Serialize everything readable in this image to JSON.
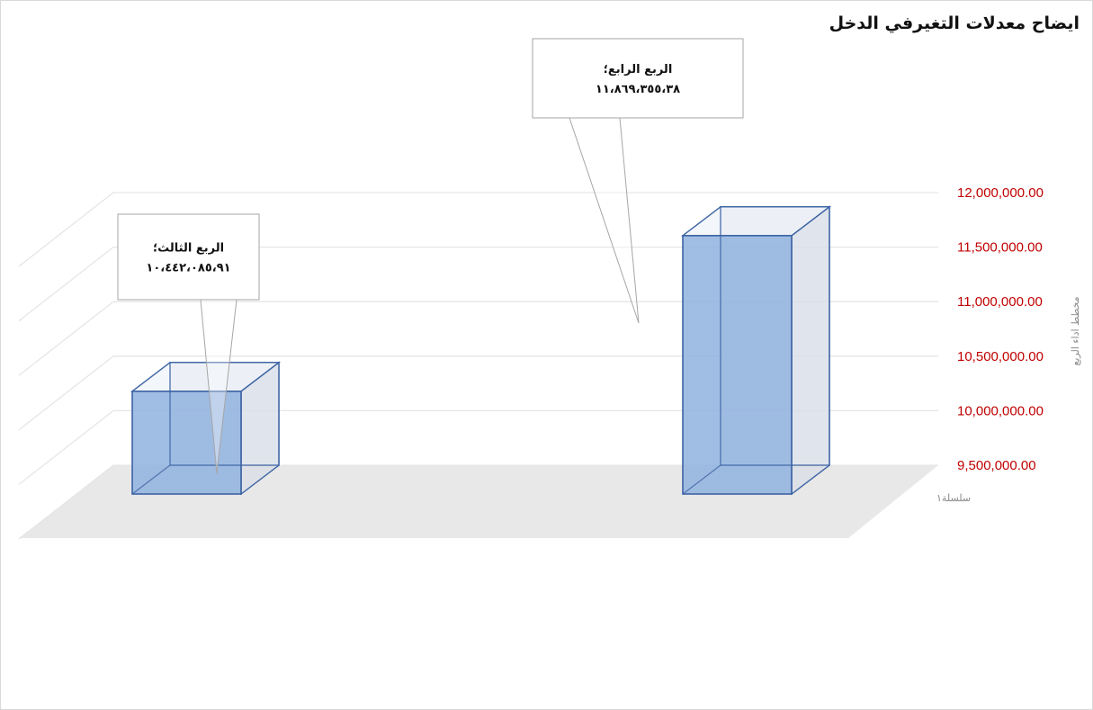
{
  "chart_data": {
    "type": "bar",
    "title": "ايضاح معدلات التغيرفي الدخل",
    "ylabel": "مخطط اداء الربع",
    "series_label": "سلسلة١",
    "categories": [
      "الربع الثالث",
      "الربع الرابع"
    ],
    "values": [
      10442085.91,
      11869355.38
    ],
    "value_labels": [
      "١٠،٤٤٢،٠٨٥،٩١",
      "١١،٨٦٩،٣٥٥،٣٨"
    ],
    "callouts": [
      "الربع الثالث؛",
      "الربع الرابع؛"
    ],
    "ylim": [
      9500000,
      12000000
    ],
    "yticks": [
      9500000,
      10000000,
      10500000,
      11000000,
      11500000,
      12000000
    ],
    "ytick_labels": [
      "9,500,000.00",
      "10,000,000.00",
      "10,500,000.00",
      "11,000,000.00",
      "11,500,000.00",
      "12,000,000.00"
    ],
    "grid": true,
    "three_d": true,
    "bar_color": "#8fb1de",
    "bar_edge_color": "#3c63a3",
    "tick_label_color": "#c00000",
    "floor_color": "#e8e8e8",
    "gridline_color": "#e6e6e6"
  }
}
